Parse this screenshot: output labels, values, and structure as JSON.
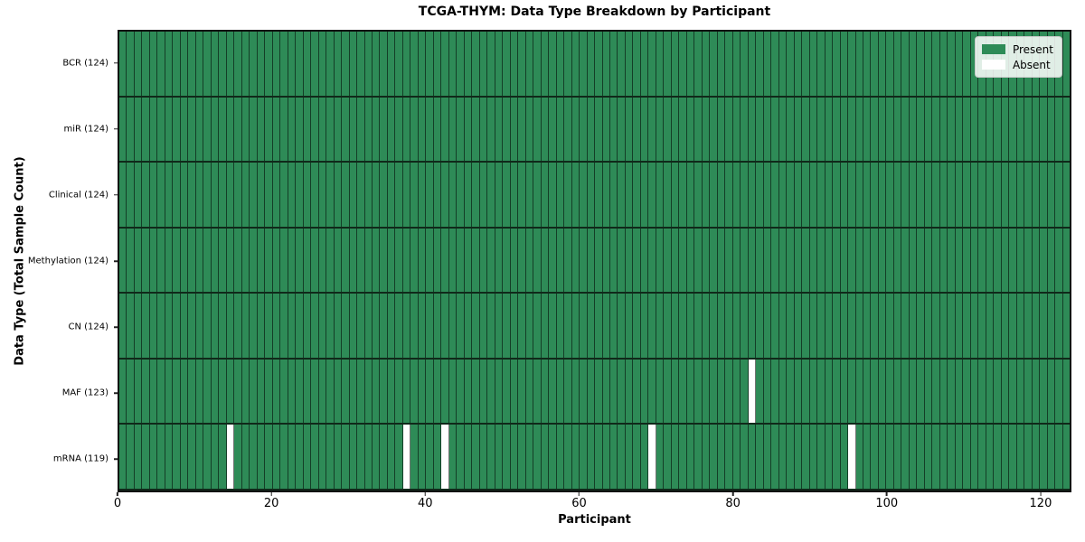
{
  "chart": {
    "title": "TCGA-THYM: Data Type Breakdown by Participant",
    "xlabel": "Participant",
    "ylabel": "Data Type (Total Sample Count)"
  },
  "legend": {
    "items": [
      {
        "label": "Present",
        "color": "#2e8b57"
      },
      {
        "label": "Absent",
        "color": "#ffffff"
      }
    ]
  },
  "chart_data": {
    "type": "heatmap",
    "title": "TCGA-THYM: Data Type Breakdown by Participant",
    "xlabel": "Participant",
    "ylabel": "Data Type (Total Sample Count)",
    "n_participants": 124,
    "xlim": [
      0,
      124
    ],
    "x_ticks": [
      0,
      20,
      40,
      60,
      80,
      100,
      120
    ],
    "legend_position": "upper right",
    "grid": "cell-borders",
    "colors": {
      "present": "#2e8b57",
      "absent": "#ffffff"
    },
    "rows": [
      {
        "label": "BCR (124)",
        "data_type": "BCR",
        "present_count": 124,
        "absent_participants": []
      },
      {
        "label": "miR (124)",
        "data_type": "miR",
        "present_count": 124,
        "absent_participants": []
      },
      {
        "label": "Clinical (124)",
        "data_type": "Clinical",
        "present_count": 124,
        "absent_participants": []
      },
      {
        "label": "Methylation (124)",
        "data_type": "Methylation",
        "present_count": 124,
        "absent_participants": []
      },
      {
        "label": "CN (124)",
        "data_type": "CN",
        "present_count": 124,
        "absent_participants": []
      },
      {
        "label": "MAF (123)",
        "data_type": "MAF",
        "present_count": 123,
        "absent_participants": [
          82
        ]
      },
      {
        "label": "mRNA (119)",
        "data_type": "mRNA",
        "present_count": 119,
        "absent_participants": [
          14,
          37,
          42,
          69,
          95
        ]
      }
    ]
  }
}
